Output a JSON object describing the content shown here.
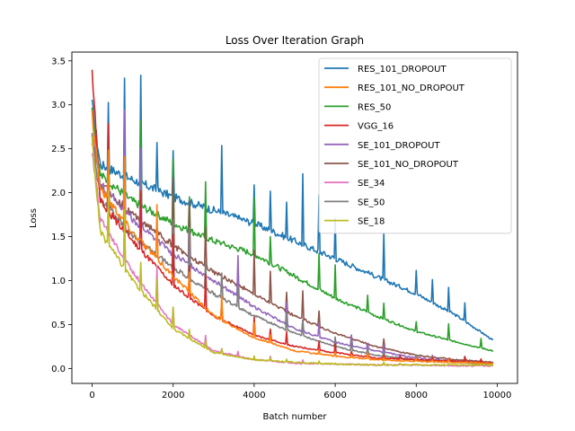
{
  "chart_data": {
    "type": "line",
    "title": "Loss Over Iteration Graph",
    "xlabel": "Batch number",
    "ylabel": "Loss",
    "xlim": [
      -500,
      10500
    ],
    "ylim": [
      -0.17,
      3.6
    ],
    "xticks": [
      0,
      2000,
      4000,
      6000,
      8000,
      10000
    ],
    "xtick_labels": [
      "0",
      "2000",
      "4000",
      "6000",
      "8000",
      "10000"
    ],
    "yticks": [
      0.0,
      0.5,
      1.0,
      1.5,
      2.0,
      2.5,
      3.0,
      3.5
    ],
    "ytick_labels": [
      "0.0",
      "0.5",
      "1.0",
      "1.5",
      "2.0",
      "2.5",
      "3.0",
      "3.5"
    ],
    "grid": false,
    "legend_position": "top-right",
    "series": [
      {
        "name": "RES_101_DROPOUT",
        "color": "#1f77b4",
        "x": [
          0,
          200,
          1000,
          2000,
          3000,
          4000,
          5000,
          6000,
          7000,
          8000,
          9000,
          9900
        ],
        "y": [
          3.0,
          2.32,
          2.15,
          1.95,
          1.8,
          1.65,
          1.45,
          1.25,
          1.05,
          0.85,
          0.6,
          0.32
        ]
      },
      {
        "name": "RES_101_NO_DROPOUT",
        "color": "#ff7f0e",
        "x": [
          0,
          200,
          1000,
          2000,
          3000,
          4000,
          5000,
          6000,
          7000,
          8000,
          9000,
          9900
        ],
        "y": [
          2.9,
          2.05,
          1.55,
          1.05,
          0.6,
          0.35,
          0.2,
          0.14,
          0.1,
          0.08,
          0.07,
          0.06
        ]
      },
      {
        "name": "RES_50",
        "color": "#2ca02c",
        "x": [
          0,
          200,
          1000,
          2000,
          3000,
          4000,
          5000,
          6000,
          7000,
          8000,
          9000,
          9900
        ],
        "y": [
          2.95,
          2.2,
          1.9,
          1.65,
          1.45,
          1.3,
          1.05,
          0.8,
          0.6,
          0.42,
          0.3,
          0.2
        ]
      },
      {
        "name": "VGG_16",
        "color": "#d62728",
        "x": [
          0,
          200,
          1000,
          2000,
          3000,
          4000,
          5000,
          6000,
          7000,
          8000,
          9000,
          9900
        ],
        "y": [
          3.4,
          1.9,
          1.45,
          0.95,
          0.6,
          0.38,
          0.25,
          0.18,
          0.12,
          0.1,
          0.08,
          0.06
        ]
      },
      {
        "name": "SE_101_DROPOUT",
        "color": "#9467bd",
        "x": [
          0,
          200,
          1000,
          2000,
          3000,
          4000,
          5000,
          6000,
          7000,
          8000,
          9000,
          9900
        ],
        "y": [
          2.7,
          2.1,
          1.7,
          1.3,
          1.0,
          0.7,
          0.45,
          0.3,
          0.2,
          0.12,
          0.08,
          0.06
        ]
      },
      {
        "name": "SE_101_NO_DROPOUT",
        "color": "#8c564b",
        "x": [
          0,
          200,
          1000,
          2000,
          3000,
          4000,
          5000,
          6000,
          7000,
          8000,
          9000,
          9900
        ],
        "y": [
          2.6,
          2.1,
          1.75,
          1.4,
          1.1,
          0.85,
          0.6,
          0.4,
          0.25,
          0.15,
          0.1,
          0.07
        ]
      },
      {
        "name": "SE_34",
        "color": "#e377c2",
        "x": [
          0,
          200,
          1000,
          2000,
          3000,
          4000,
          5000,
          6000,
          7000,
          8000,
          9000,
          9900
        ],
        "y": [
          2.5,
          1.7,
          1.1,
          0.5,
          0.2,
          0.1,
          0.06,
          0.05,
          0.04,
          0.04,
          0.03,
          0.03
        ]
      },
      {
        "name": "SE_50",
        "color": "#7f7f7f",
        "x": [
          0,
          200,
          1000,
          2000,
          3000,
          4000,
          5000,
          6000,
          7000,
          8000,
          9000,
          9900
        ],
        "y": [
          2.6,
          1.95,
          1.5,
          1.15,
          0.85,
          0.6,
          0.4,
          0.25,
          0.15,
          0.1,
          0.07,
          0.05
        ]
      },
      {
        "name": "SE_18",
        "color": "#bcbd22",
        "x": [
          0,
          200,
          1000,
          2000,
          3000,
          4000,
          5000,
          6000,
          7000,
          8000,
          9000,
          9900
        ],
        "y": [
          2.6,
          1.55,
          1.0,
          0.45,
          0.18,
          0.1,
          0.07,
          0.05,
          0.04,
          0.04,
          0.04,
          0.04
        ]
      }
    ]
  }
}
